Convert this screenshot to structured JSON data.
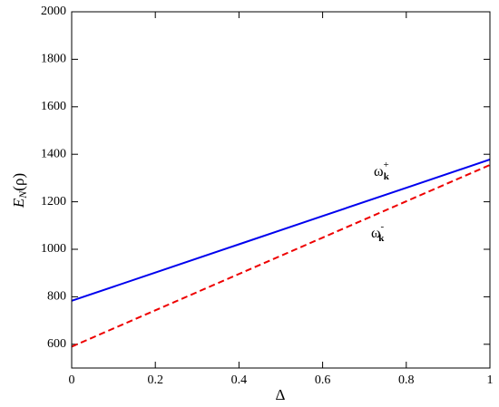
{
  "chart_data": {
    "type": "line",
    "x": [
      0,
      0.2,
      0.4,
      0.6,
      0.8,
      1
    ],
    "series": [
      {
        "color": "#0000ee",
        "dash": "solid",
        "values": [
          783,
          902,
          1021,
          1140,
          1259,
          1378
        ]
      },
      {
        "color": "#ee0000",
        "dash": "dashed",
        "values": [
          590,
          743,
          896,
          1049,
          1202,
          1355
        ]
      }
    ],
    "xlabel": "Δ",
    "ylabel": {
      "main": "E",
      "sub": "N",
      "rest": "(ρ)"
    },
    "annotations": [
      {
        "text": "ω",
        "sup": "+",
        "sub": "k"
      },
      {
        "text": "ω",
        "sup": "-",
        "sub": "k"
      }
    ],
    "xlim": [
      0,
      1
    ],
    "xticks": [
      0,
      0.2,
      0.4,
      0.6,
      0.8,
      1
    ],
    "ylim": [
      500,
      2000
    ],
    "yticks": [
      600,
      800,
      1000,
      1200,
      1400,
      1600,
      1800,
      2000
    ]
  }
}
